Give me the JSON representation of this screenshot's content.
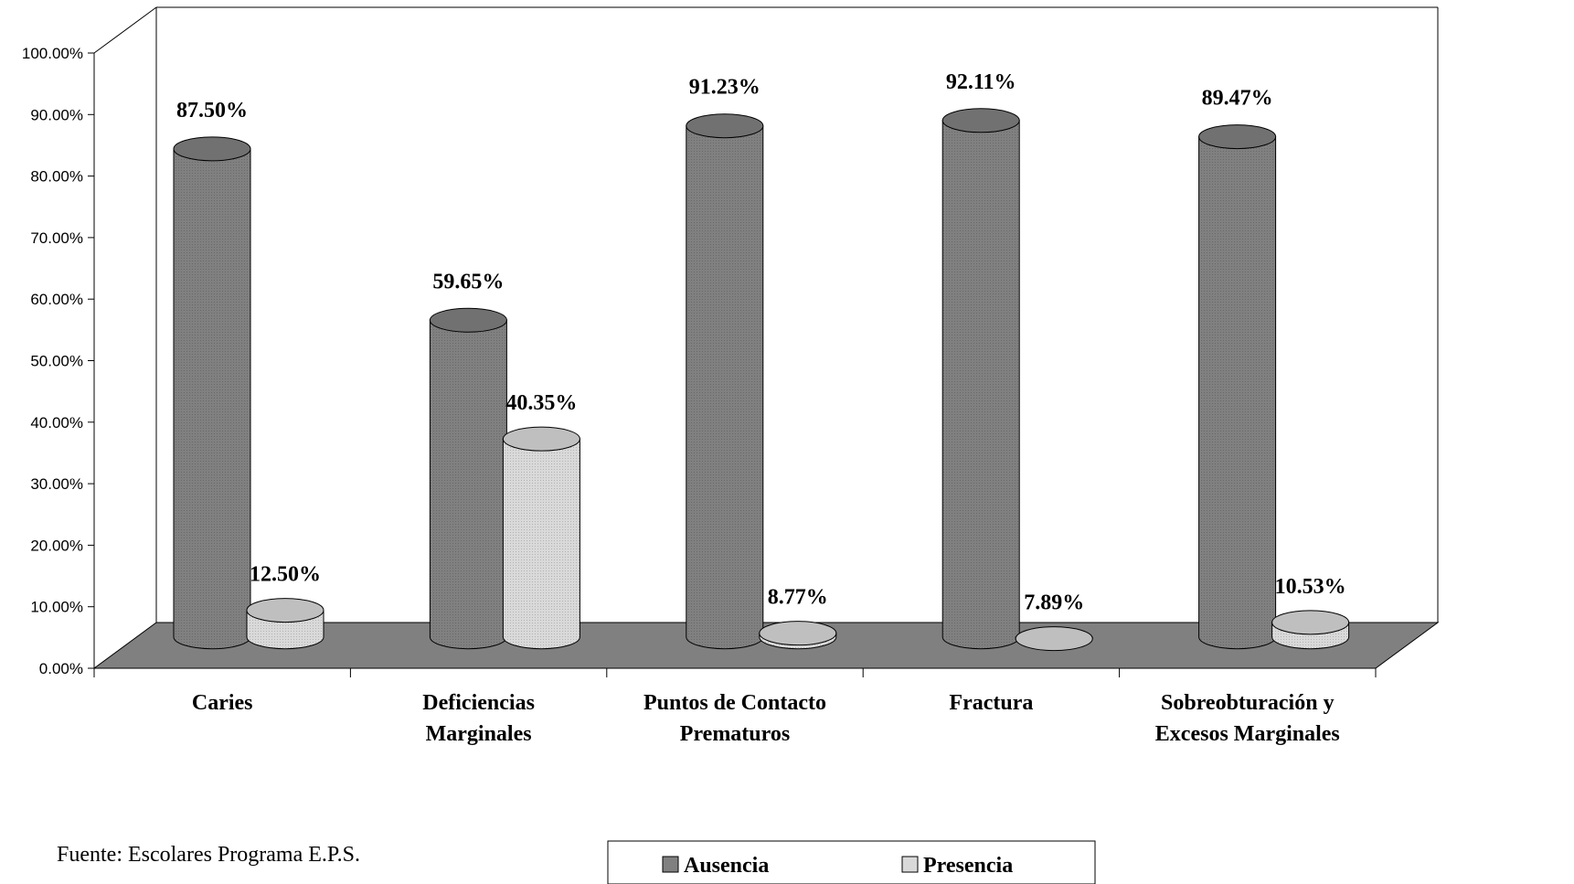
{
  "chart_data": {
    "type": "bar",
    "style": "3d-cylinder",
    "categories": [
      [
        "Caries"
      ],
      [
        "Deficiencias",
        "Marginales"
      ],
      [
        "Puntos de Contacto",
        "Prematuros"
      ],
      [
        "Fractura"
      ],
      [
        "Sobreobturación y",
        "Excesos Marginales"
      ]
    ],
    "series": [
      {
        "name": "Ausencia",
        "color": "#808080",
        "values": [
          87.5,
          59.65,
          91.23,
          92.11,
          89.47
        ],
        "labels": [
          "87.50%",
          "59.65%",
          "91.23%",
          "92.11%",
          "89.47%"
        ]
      },
      {
        "name": "Presencia",
        "color": "#d9d9d9",
        "values": [
          12.5,
          40.35,
          8.77,
          7.89,
          10.53
        ],
        "labels": [
          "12.50%",
          "40.35%",
          "8.77%",
          "7.89%",
          "10.53%"
        ]
      }
    ],
    "yticks": [
      "0.00%",
      "10.00%",
      "20.00%",
      "30.00%",
      "40.00%",
      "50.00%",
      "60.00%",
      "70.00%",
      "80.00%",
      "90.00%",
      "100.00%"
    ],
    "ylim": [
      0,
      100
    ],
    "grid": false,
    "legend": "bottom-center"
  },
  "source_note": "Fuente:  Escolares Programa E.P.S."
}
